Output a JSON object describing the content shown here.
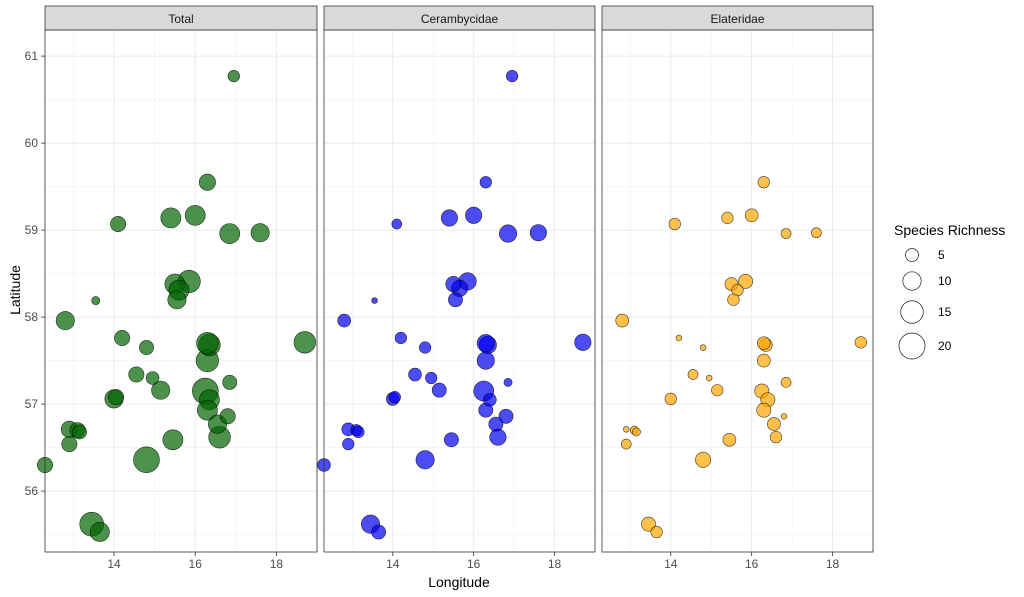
{
  "chart_data": {
    "type": "scatter",
    "xlabel": "Longitude",
    "ylabel": "Latitude",
    "xlim": [
      12.3,
      19.0
    ],
    "ylim": [
      55.3,
      61.3
    ],
    "x_ticks": [
      14,
      16,
      18
    ],
    "y_ticks": [
      56,
      57,
      58,
      59,
      60,
      61
    ],
    "grid": true,
    "legend": {
      "title": "Species Richness",
      "position": "right",
      "sizes": [
        5,
        10,
        15,
        20
      ]
    },
    "panels": [
      {
        "name": "Total",
        "color": "#006400",
        "points": [
          {
            "x": 16.95,
            "y": 60.77,
            "size": 4
          },
          {
            "x": 16.3,
            "y": 59.55,
            "size": 8
          },
          {
            "x": 14.1,
            "y": 59.07,
            "size": 7
          },
          {
            "x": 15.4,
            "y": 59.14,
            "size": 12
          },
          {
            "x": 16.0,
            "y": 59.17,
            "size": 12
          },
          {
            "x": 16.85,
            "y": 58.96,
            "size": 12
          },
          {
            "x": 17.6,
            "y": 58.97,
            "size": 10
          },
          {
            "x": 15.5,
            "y": 58.38,
            "size": 12
          },
          {
            "x": 15.85,
            "y": 58.41,
            "size": 15
          },
          {
            "x": 15.6,
            "y": 58.31,
            "size": 12
          },
          {
            "x": 15.55,
            "y": 58.2,
            "size": 10
          },
          {
            "x": 13.55,
            "y": 58.19,
            "size": 2
          },
          {
            "x": 12.8,
            "y": 57.96,
            "size": 10
          },
          {
            "x": 14.2,
            "y": 57.76,
            "size": 7
          },
          {
            "x": 14.8,
            "y": 57.65,
            "size": 6
          },
          {
            "x": 16.35,
            "y": 57.68,
            "size": 14
          },
          {
            "x": 16.3,
            "y": 57.7,
            "size": 14
          },
          {
            "x": 16.3,
            "y": 57.5,
            "size": 15
          },
          {
            "x": 18.7,
            "y": 57.71,
            "size": 14
          },
          {
            "x": 14.55,
            "y": 57.34,
            "size": 7
          },
          {
            "x": 14.95,
            "y": 57.3,
            "size": 5
          },
          {
            "x": 15.15,
            "y": 57.16,
            "size": 10
          },
          {
            "x": 16.25,
            "y": 57.15,
            "size": 20
          },
          {
            "x": 16.35,
            "y": 57.05,
            "size": 12
          },
          {
            "x": 16.85,
            "y": 57.25,
            "size": 6
          },
          {
            "x": 14.0,
            "y": 57.06,
            "size": 10
          },
          {
            "x": 14.05,
            "y": 57.08,
            "size": 7
          },
          {
            "x": 16.3,
            "y": 56.93,
            "size": 12
          },
          {
            "x": 16.8,
            "y": 56.86,
            "size": 7
          },
          {
            "x": 16.55,
            "y": 56.77,
            "size": 10
          },
          {
            "x": 16.6,
            "y": 56.62,
            "size": 14
          },
          {
            "x": 12.9,
            "y": 56.71,
            "size": 8
          },
          {
            "x": 13.1,
            "y": 56.7,
            "size": 7
          },
          {
            "x": 13.15,
            "y": 56.68,
            "size": 6
          },
          {
            "x": 12.9,
            "y": 56.54,
            "size": 7
          },
          {
            "x": 15.45,
            "y": 56.59,
            "size": 12
          },
          {
            "x": 14.8,
            "y": 56.36,
            "size": 20
          },
          {
            "x": 12.3,
            "y": 56.3,
            "size": 7
          },
          {
            "x": 13.45,
            "y": 55.62,
            "size": 17
          },
          {
            "x": 13.65,
            "y": 55.53,
            "size": 11
          }
        ]
      },
      {
        "name": "Cerambycidae",
        "color": "#0000ee",
        "points": [
          {
            "x": 16.95,
            "y": 60.77,
            "size": 4
          },
          {
            "x": 16.3,
            "y": 59.55,
            "size": 4
          },
          {
            "x": 14.1,
            "y": 59.07,
            "size": 3
          },
          {
            "x": 15.4,
            "y": 59.14,
            "size": 8
          },
          {
            "x": 16.0,
            "y": 59.17,
            "size": 8
          },
          {
            "x": 16.85,
            "y": 58.96,
            "size": 9
          },
          {
            "x": 17.6,
            "y": 58.97,
            "size": 8
          },
          {
            "x": 15.5,
            "y": 58.38,
            "size": 7
          },
          {
            "x": 15.85,
            "y": 58.41,
            "size": 9
          },
          {
            "x": 15.65,
            "y": 58.33,
            "size": 8
          },
          {
            "x": 15.55,
            "y": 58.2,
            "size": 6
          },
          {
            "x": 13.55,
            "y": 58.19,
            "size": 1
          },
          {
            "x": 12.8,
            "y": 57.96,
            "size": 5
          },
          {
            "x": 14.2,
            "y": 57.76,
            "size": 4
          },
          {
            "x": 14.8,
            "y": 57.65,
            "size": 4
          },
          {
            "x": 16.35,
            "y": 57.68,
            "size": 9
          },
          {
            "x": 16.3,
            "y": 57.7,
            "size": 9
          },
          {
            "x": 16.3,
            "y": 57.5,
            "size": 9
          },
          {
            "x": 18.7,
            "y": 57.71,
            "size": 8
          },
          {
            "x": 14.55,
            "y": 57.34,
            "size": 5
          },
          {
            "x": 14.95,
            "y": 57.3,
            "size": 4
          },
          {
            "x": 15.15,
            "y": 57.16,
            "size": 6
          },
          {
            "x": 16.25,
            "y": 57.15,
            "size": 12
          },
          {
            "x": 16.4,
            "y": 57.05,
            "size": 5
          },
          {
            "x": 16.85,
            "y": 57.25,
            "size": 2
          },
          {
            "x": 14.0,
            "y": 57.06,
            "size": 5
          },
          {
            "x": 14.05,
            "y": 57.08,
            "size": 4
          },
          {
            "x": 16.3,
            "y": 56.93,
            "size": 6
          },
          {
            "x": 16.8,
            "y": 56.86,
            "size": 6
          },
          {
            "x": 16.55,
            "y": 56.77,
            "size": 6
          },
          {
            "x": 16.6,
            "y": 56.62,
            "size": 8
          },
          {
            "x": 12.9,
            "y": 56.71,
            "size": 5
          },
          {
            "x": 13.1,
            "y": 56.7,
            "size": 4
          },
          {
            "x": 13.15,
            "y": 56.68,
            "size": 4
          },
          {
            "x": 12.9,
            "y": 56.54,
            "size": 4
          },
          {
            "x": 15.45,
            "y": 56.59,
            "size": 6
          },
          {
            "x": 14.8,
            "y": 56.36,
            "size": 10
          },
          {
            "x": 12.3,
            "y": 56.3,
            "size": 5
          },
          {
            "x": 13.45,
            "y": 55.62,
            "size": 10
          },
          {
            "x": 13.65,
            "y": 55.53,
            "size": 6
          }
        ]
      },
      {
        "name": "Elateridae",
        "color": "#ffa500",
        "points": [
          {
            "x": 16.3,
            "y": 59.55,
            "size": 4
          },
          {
            "x": 14.1,
            "y": 59.07,
            "size": 4
          },
          {
            "x": 15.4,
            "y": 59.14,
            "size": 4
          },
          {
            "x": 16.0,
            "y": 59.17,
            "size": 5
          },
          {
            "x": 16.85,
            "y": 58.96,
            "size": 3
          },
          {
            "x": 17.6,
            "y": 58.97,
            "size": 3
          },
          {
            "x": 15.5,
            "y": 58.38,
            "size": 5
          },
          {
            "x": 15.85,
            "y": 58.41,
            "size": 6
          },
          {
            "x": 15.65,
            "y": 58.31,
            "size": 4
          },
          {
            "x": 15.55,
            "y": 58.2,
            "size": 4
          },
          {
            "x": 12.8,
            "y": 57.96,
            "size": 5
          },
          {
            "x": 14.2,
            "y": 57.76,
            "size": 1
          },
          {
            "x": 14.8,
            "y": 57.65,
            "size": 1
          },
          {
            "x": 16.35,
            "y": 57.68,
            "size": 5
          },
          {
            "x": 16.3,
            "y": 57.7,
            "size": 5
          },
          {
            "x": 16.3,
            "y": 57.5,
            "size": 5
          },
          {
            "x": 18.7,
            "y": 57.71,
            "size": 4
          },
          {
            "x": 14.55,
            "y": 57.34,
            "size": 3
          },
          {
            "x": 14.95,
            "y": 57.3,
            "size": 1
          },
          {
            "x": 15.15,
            "y": 57.16,
            "size": 4
          },
          {
            "x": 16.25,
            "y": 57.15,
            "size": 6
          },
          {
            "x": 16.4,
            "y": 57.05,
            "size": 6
          },
          {
            "x": 16.85,
            "y": 57.25,
            "size": 3
          },
          {
            "x": 14.0,
            "y": 57.06,
            "size": 4
          },
          {
            "x": 16.3,
            "y": 56.93,
            "size": 6
          },
          {
            "x": 16.8,
            "y": 56.86,
            "size": 1
          },
          {
            "x": 16.55,
            "y": 56.77,
            "size": 5
          },
          {
            "x": 16.6,
            "y": 56.62,
            "size": 4
          },
          {
            "x": 12.9,
            "y": 56.71,
            "size": 1
          },
          {
            "x": 13.1,
            "y": 56.7,
            "size": 2
          },
          {
            "x": 13.15,
            "y": 56.68,
            "size": 2
          },
          {
            "x": 12.9,
            "y": 56.54,
            "size": 3
          },
          {
            "x": 15.45,
            "y": 56.59,
            "size": 5
          },
          {
            "x": 14.8,
            "y": 56.36,
            "size": 7
          },
          {
            "x": 13.45,
            "y": 55.62,
            "size": 6
          },
          {
            "x": 13.65,
            "y": 55.53,
            "size": 4
          }
        ]
      }
    ]
  }
}
